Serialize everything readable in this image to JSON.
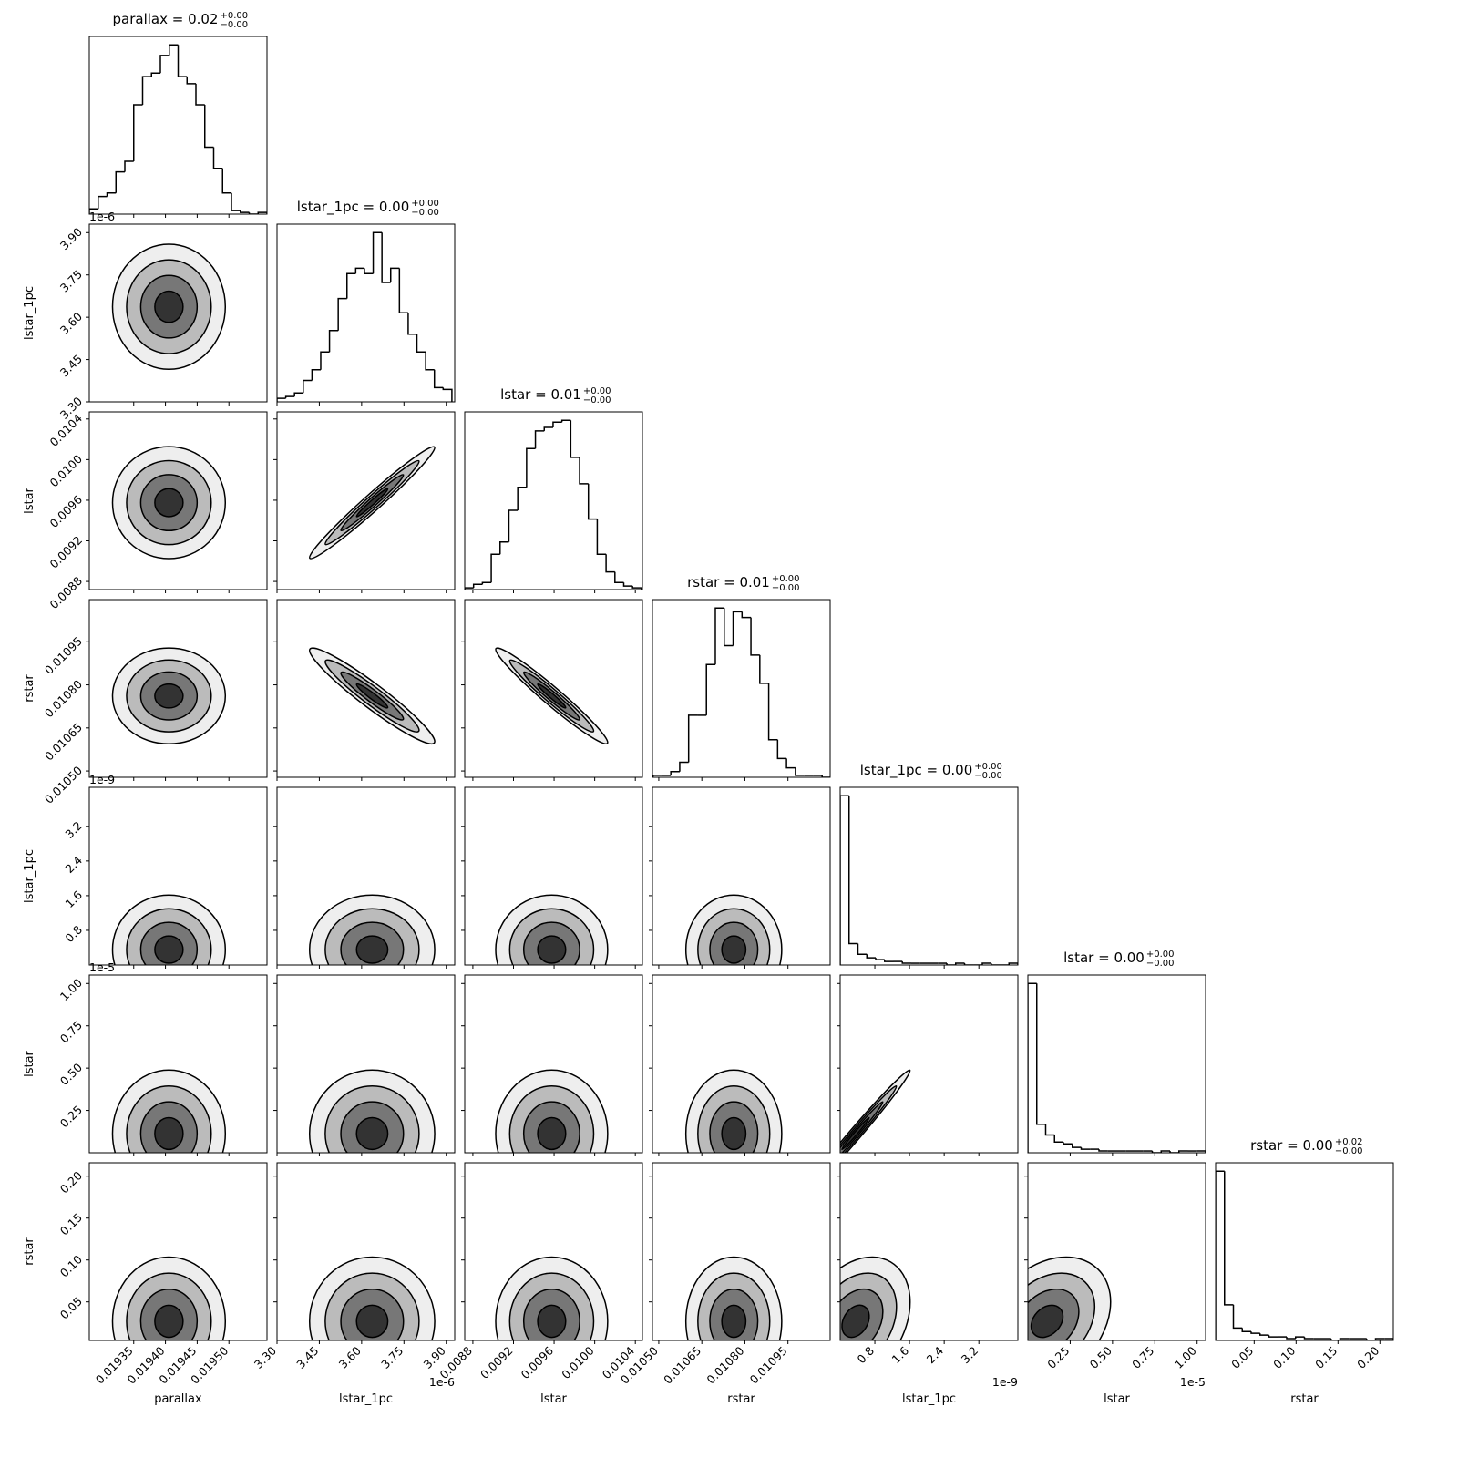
{
  "chart_data": {
    "type": "corner",
    "variables": [
      {
        "label": "parallax",
        "title": "parallax = 0.02",
        "upper": "+0.00",
        "lower": "−0.00",
        "lim": [
          0.01928,
          0.01956
        ],
        "ticks": [
          {
            "value": 0.01935,
            "label": "0.01935"
          },
          {
            "value": 0.0194,
            "label": "0.01940"
          },
          {
            "value": 0.01945,
            "label": "0.01945"
          },
          {
            "value": 0.0195,
            "label": "0.01950"
          }
        ],
        "bins": [
          0.01928,
          0.019294,
          0.019308,
          0.019322,
          0.019336,
          0.01935,
          0.019364,
          0.019378,
          0.019392,
          0.019406,
          0.01942,
          0.019434,
          0.019448,
          0.019462,
          0.019476,
          0.01949,
          0.019504,
          0.019518,
          0.019532,
          0.019546,
          0.01956
        ],
        "counts": [
          3,
          10,
          12,
          24,
          30,
          62,
          78,
          80,
          90,
          96,
          78,
          74,
          62,
          38,
          26,
          12,
          2,
          1,
          0,
          1
        ]
      },
      {
        "label": "lstar_1pc",
        "title": "lstar_1pc = 0.00",
        "upper": "+0.00",
        "lower": "−0.00",
        "offset": "1e-6",
        "lim": [
          3.3,
          3.93
        ],
        "ticks": [
          {
            "value": 3.3,
            "label": "3.30"
          },
          {
            "value": 3.45,
            "label": "3.45"
          },
          {
            "value": 3.6,
            "label": "3.60"
          },
          {
            "value": 3.75,
            "label": "3.75"
          },
          {
            "value": 3.9,
            "label": "3.90"
          }
        ],
        "bins": [
          3.3,
          3.331,
          3.362,
          3.393,
          3.424,
          3.455,
          3.486,
          3.517,
          3.548,
          3.579,
          3.61,
          3.641,
          3.672,
          3.703,
          3.734,
          3.765,
          3.796,
          3.827,
          3.858,
          3.889,
          3.92
        ],
        "counts": [
          2,
          3,
          5,
          12,
          18,
          28,
          40,
          58,
          72,
          75,
          72,
          95,
          67,
          75,
          50,
          38,
          28,
          18,
          8,
          7
        ]
      },
      {
        "label": "lstar",
        "title": "lstar = 0.01",
        "upper": "+0.00",
        "lower": "−0.00",
        "lim": [
          0.00872,
          0.01047
        ],
        "ticks": [
          0.0088,
          0.0092,
          0.0096,
          {
            "value": 0.01,
            "label": "0.0100"
          },
          0.0104
        ],
        "bins": [
          0.00872,
          0.008807,
          0.008894,
          0.008981,
          0.009068,
          0.009155,
          0.009242,
          0.009329,
          0.009416,
          0.009503,
          0.00959,
          0.009677,
          0.009764,
          0.009851,
          0.009938,
          0.010025,
          0.010112,
          0.010199,
          0.010286,
          0.010373,
          0.01046
        ],
        "counts": [
          1,
          3,
          4,
          20,
          27,
          45,
          58,
          80,
          90,
          92,
          95,
          96,
          75,
          60,
          40,
          20,
          10,
          4,
          2,
          1
        ]
      },
      {
        "label": "rstar",
        "title": "rstar = 0.01",
        "upper": "+0.00",
        "lower": "−0.00",
        "lim": [
          0.010478,
          0.011097
        ],
        "ticks": [
          {
            "value": 0.0105,
            "label": "0.01050"
          },
          0.01065,
          {
            "value": 0.0108,
            "label": "0.01080"
          },
          0.01095
        ],
        "bins": [
          0.01048,
          0.010511,
          0.010542,
          0.010573,
          0.010604,
          0.010635,
          0.010666,
          0.010697,
          0.010728,
          0.010759,
          0.01079,
          0.010821,
          0.010852,
          0.010883,
          0.010914,
          0.010945,
          0.010976,
          0.011007,
          0.011038,
          0.011069,
          0.0111
        ],
        "counts": [
          1,
          1,
          3,
          8,
          33,
          33,
          60,
          90,
          70,
          88,
          85,
          65,
          50,
          20,
          10,
          5,
          1,
          1,
          1,
          0
        ]
      },
      {
        "label": "lstar_1pc",
        "title": "lstar_1pc = 0.00",
        "upper": "+0.00",
        "lower": "−0.00",
        "offset": "1e-9",
        "lim": [
          0,
          4.1
        ],
        "ticks": [
          0.8,
          1.6,
          2.4,
          3.2
        ],
        "bins": [
          0,
          0.205,
          0.41,
          0.615,
          0.82,
          1.025,
          1.23,
          1.435,
          1.64,
          1.845,
          2.05,
          2.255,
          2.46,
          2.665,
          2.87,
          3.075,
          3.28,
          3.485,
          3.69,
          3.895,
          4.1
        ],
        "counts": [
          95,
          12,
          6,
          4,
          3,
          2,
          2,
          1,
          1,
          1,
          1,
          1,
          0,
          1,
          0,
          0,
          1,
          0,
          0,
          1
        ]
      },
      {
        "label": "lstar",
        "title": "lstar = 0.00",
        "upper": "+0.00",
        "lower": "−0.00",
        "offset": "1e-5",
        "lim": [
          0,
          1.05
        ],
        "ticks": [
          0.25,
          {
            "value": 0.5,
            "label": "0.50"
          },
          0.75,
          {
            "value": 1,
            "label": "1.00"
          }
        ],
        "bins": [
          0,
          0.0525,
          0.105,
          0.1575,
          0.21,
          0.2625,
          0.315,
          0.3675,
          0.42,
          0.4725,
          0.525,
          0.5775,
          0.63,
          0.6825,
          0.735,
          0.7875,
          0.84,
          0.8925,
          0.945,
          0.9975,
          1.05
        ],
        "counts": [
          95,
          16,
          10,
          6,
          5,
          3,
          2,
          2,
          1,
          1,
          1,
          1,
          1,
          1,
          0,
          1,
          0,
          1,
          1,
          1
        ]
      },
      {
        "label": "rstar",
        "title": "rstar = 0.00",
        "upper": "+0.02",
        "lower": "−0.00",
        "lim": [
          0.004,
          0.216
        ],
        "ticks": [
          0.05,
          {
            "value": 0.1,
            "label": "0.10"
          },
          0.15,
          {
            "value": 0.2,
            "label": "0.20"
          }
        ],
        "bins": [
          0.004,
          0.0146,
          0.0252,
          0.0358,
          0.0464,
          0.057,
          0.0676,
          0.0782,
          0.0888,
          0.0994,
          0.11,
          0.1206,
          0.1312,
          0.1418,
          0.1524,
          0.163,
          0.1736,
          0.1842,
          0.1948,
          0.2054,
          0.216
        ],
        "counts": [
          95,
          20,
          7,
          5,
          4,
          3,
          2,
          2,
          1,
          2,
          1,
          1,
          1,
          0,
          1,
          1,
          1,
          0,
          1,
          1
        ]
      }
    ],
    "correlations": [
      [
        0
      ],
      [
        0,
        0.98
      ],
      [
        0,
        -0.95,
        -0.97
      ],
      [
        0,
        0,
        0,
        0
      ],
      [
        0,
        0,
        0,
        0,
        0.99
      ],
      [
        0,
        0,
        0,
        0,
        0.3,
        0.3
      ]
    ]
  }
}
